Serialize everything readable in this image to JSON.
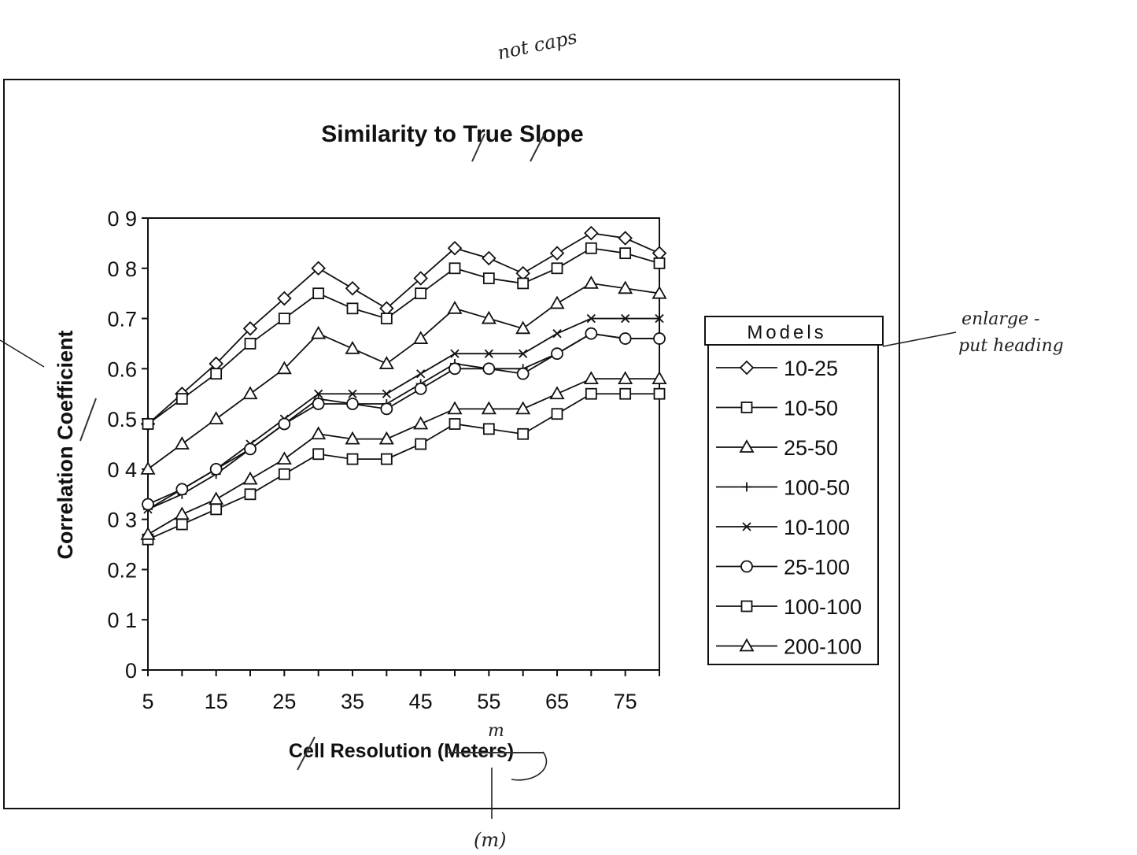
{
  "annotations": {
    "top_note": "not caps",
    "right_note_line1": "enlarge -",
    "right_note_line2": "put heading",
    "units_note": "m",
    "bottom_note": "(m)"
  },
  "chart_data": {
    "type": "line",
    "title": "Similarity to True Slope",
    "xlabel": "Cell Resolution (Meters)",
    "ylabel": "Correlation Coefficient",
    "xlim": [
      5,
      80
    ],
    "ylim": [
      0,
      0.9
    ],
    "x_ticks": [
      5,
      15,
      25,
      35,
      45,
      55,
      65,
      75
    ],
    "y_ticks": [
      0,
      0.1,
      0.2,
      0.3,
      0.4,
      0.5,
      0.6,
      0.7,
      0.8,
      0.9
    ],
    "y_tick_labels": [
      "0",
      "0 1",
      "0.2",
      "0 3",
      "0 4",
      "0.5",
      "0.6",
      "0.7",
      "0 8",
      "0 9"
    ],
    "grid": false,
    "legend_title": "Models",
    "legend_position": "right",
    "x": [
      5,
      10,
      15,
      20,
      25,
      30,
      35,
      40,
      45,
      50,
      55,
      60,
      65,
      70,
      75,
      80
    ],
    "series": [
      {
        "name": "10-25",
        "marker": "diamond",
        "values": [
          0.49,
          0.55,
          0.61,
          0.68,
          0.74,
          0.8,
          0.76,
          0.72,
          0.78,
          0.84,
          0.82,
          0.79,
          0.83,
          0.87,
          0.86,
          0.83
        ]
      },
      {
        "name": "10-50",
        "marker": "square",
        "values": [
          0.49,
          0.54,
          0.59,
          0.65,
          0.7,
          0.75,
          0.72,
          0.7,
          0.75,
          0.8,
          0.78,
          0.77,
          0.8,
          0.84,
          0.83,
          0.81
        ]
      },
      {
        "name": "25-50",
        "marker": "triangle",
        "values": [
          0.4,
          0.45,
          0.5,
          0.55,
          0.6,
          0.67,
          0.64,
          0.61,
          0.66,
          0.72,
          0.7,
          0.68,
          0.73,
          0.77,
          0.76,
          0.75
        ]
      },
      {
        "name": "100-50",
        "marker": "plus",
        "values": [
          0.32,
          0.35,
          0.39,
          0.44,
          0.49,
          0.54,
          0.53,
          0.53,
          0.57,
          0.61,
          0.6,
          0.6,
          0.63,
          0.67,
          0.66,
          0.66
        ]
      },
      {
        "name": "10-100",
        "marker": "x",
        "values": [
          0.32,
          0.36,
          0.4,
          0.45,
          0.5,
          0.55,
          0.55,
          0.55,
          0.59,
          0.63,
          0.63,
          0.63,
          0.67,
          0.7,
          0.7,
          0.7
        ]
      },
      {
        "name": "25-100",
        "marker": "circle",
        "values": [
          0.33,
          0.36,
          0.4,
          0.44,
          0.49,
          0.53,
          0.53,
          0.52,
          0.56,
          0.6,
          0.6,
          0.59,
          0.63,
          0.67,
          0.66,
          0.66
        ]
      },
      {
        "name": "100-100",
        "marker": "square",
        "values": [
          0.26,
          0.29,
          0.32,
          0.35,
          0.39,
          0.43,
          0.42,
          0.42,
          0.45,
          0.49,
          0.48,
          0.47,
          0.51,
          0.55,
          0.55,
          0.55
        ]
      },
      {
        "name": "200-100",
        "marker": "triangle",
        "values": [
          0.27,
          0.31,
          0.34,
          0.38,
          0.42,
          0.47,
          0.46,
          0.46,
          0.49,
          0.52,
          0.52,
          0.52,
          0.55,
          0.58,
          0.58,
          0.58
        ]
      }
    ]
  }
}
